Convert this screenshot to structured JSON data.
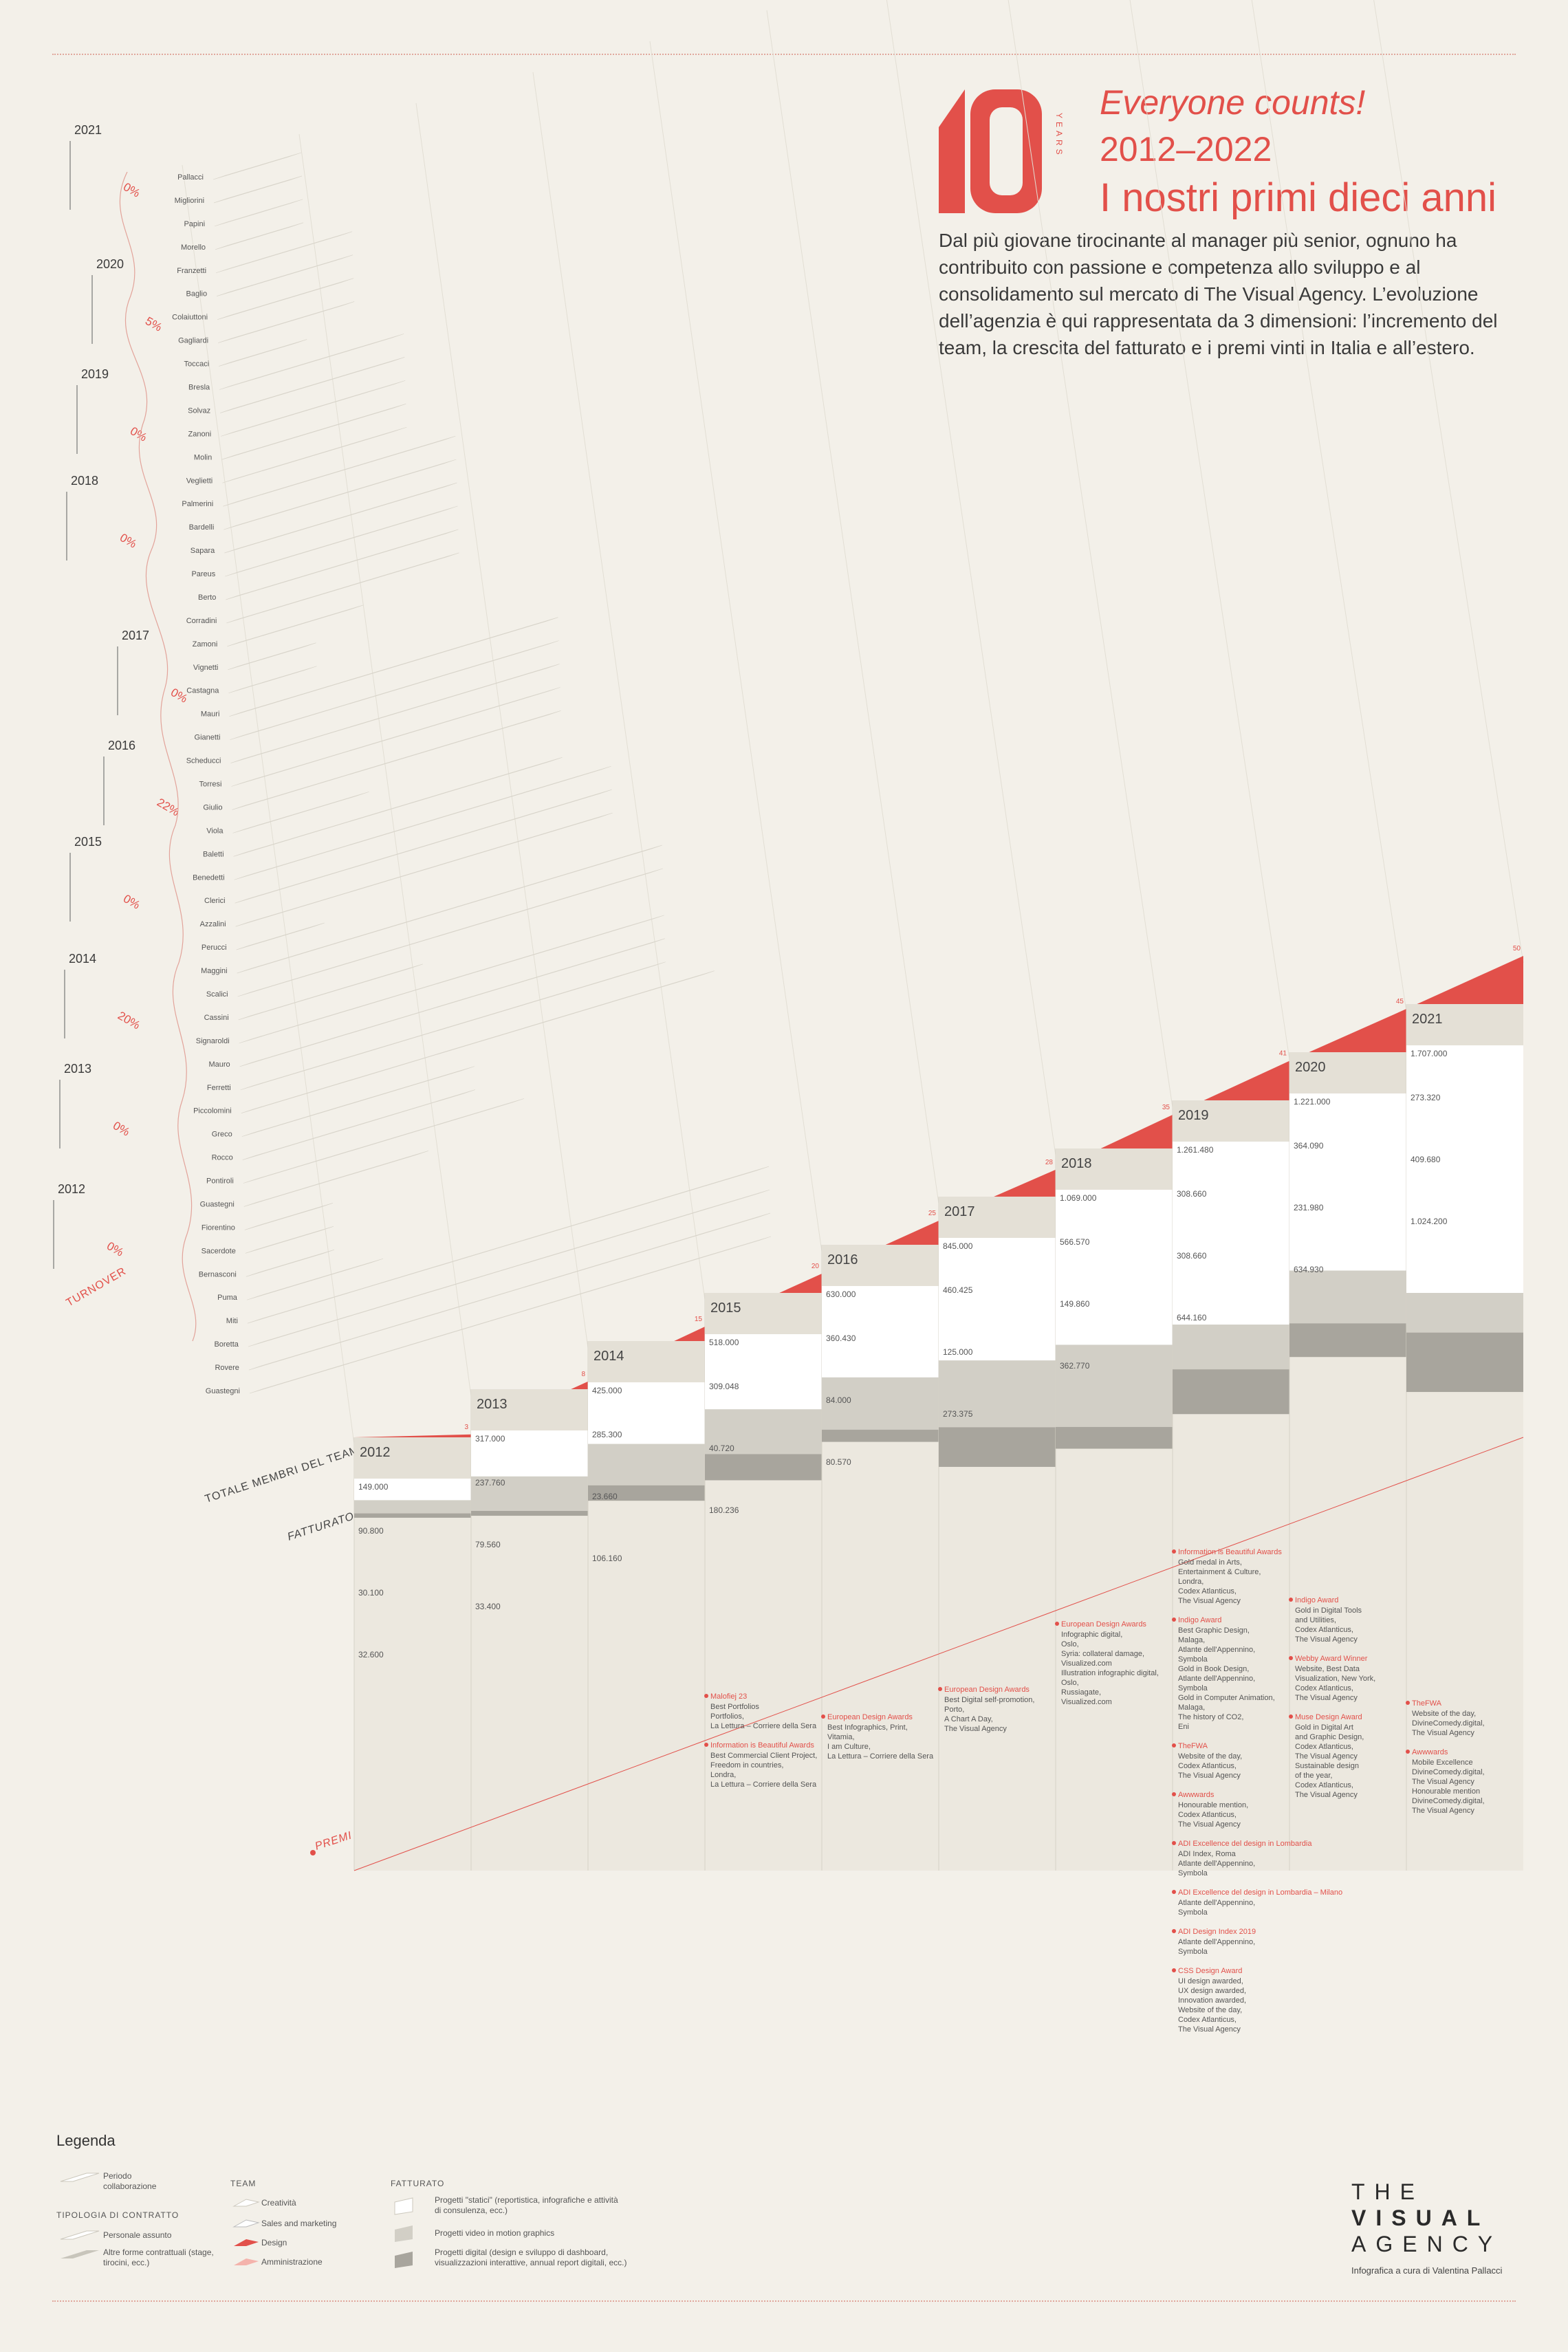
{
  "header": {
    "logo_number": "10",
    "logo_years": "YEARS",
    "tagline": "Everyone counts!",
    "range": "2012–2022",
    "title": "I nostri primi dieci anni",
    "intro": "Dal più giovane tirocinante al manager più senior, ognuno ha contribuito con passione e competenza allo sviluppo e al consolidamento sul mercato di The Visual Agency. L’evoluzione dell’agenzia è qui rappresentata da 3 dimensioni: l’incremento del team, la crescita del fatturato e i premi vinti in Italia e all’estero."
  },
  "colors": {
    "accent": "#e2504a",
    "background": "#f3f0e9",
    "static_projects": "#ffffff",
    "video_projects": "#d2cfc6",
    "digital_projects": "#a8a59d"
  },
  "chart_data": {
    "type": "area",
    "axis_labels": {
      "team": "TOTALE MEMBRI DEL TEAM",
      "revenue": "FATTURATO",
      "awards": "PREMI",
      "turnover": "TURNOVER"
    },
    "years": [
      "2012",
      "2013",
      "2014",
      "2015",
      "2016",
      "2017",
      "2018",
      "2019",
      "2020",
      "2021"
    ],
    "team_total": [
      3,
      8,
      15,
      20,
      25,
      28,
      35,
      41,
      45,
      50
    ],
    "revenue_total_labels": [
      "149.000",
      "317.000",
      "425.000",
      "518.000",
      "630.000",
      "845.000",
      "1.069.000",
      "1.261.480",
      "1.221.000",
      "1.707.000"
    ],
    "revenue_series": [
      {
        "name": "Progetti \"statici\"",
        "values": [
          149000,
          317000,
          425000,
          518000,
          630000,
          845000,
          1069000,
          1261480,
          1221000,
          1707000
        ]
      },
      {
        "name": "Progetti video in motion graphics",
        "values": [
          90800,
          237760,
          285300,
          309048,
          360430,
          460425,
          566570,
          308660,
          364090,
          273320
        ]
      },
      {
        "name": "Progetti digital",
        "values": [
          30100,
          33400,
          106160,
          180236,
          84000,
          273375,
          149860,
          308660,
          231980,
          409680
        ]
      }
    ],
    "revenue_other_labels": [
      [
        "90.800",
        "30.100",
        "32.600"
      ],
      [
        "237.760",
        "79.560",
        "33.400"
      ],
      [
        "285.300",
        "23.660",
        "106.160"
      ],
      [
        "309.048",
        "40.720",
        "180.236"
      ],
      [
        "360.430",
        "84.000",
        "80.570"
      ],
      [
        "460.425",
        "125.000",
        "273.375"
      ],
      [
        "566.570",
        "149.860",
        "362.770"
      ],
      [
        "308.660",
        "308.660",
        "644.160"
      ],
      [
        "364.090",
        "231.980",
        "634.930"
      ],
      [
        "273.320",
        "409.680",
        "1.024.200"
      ]
    ],
    "turnover": [
      {
        "year": "2021",
        "pct": "0%"
      },
      {
        "year": "2020",
        "pct": "5%"
      },
      {
        "year": "2019",
        "pct": "0%"
      },
      {
        "year": "2018",
        "pct": "0%"
      },
      {
        "year": "2017",
        "pct": "0%"
      },
      {
        "year": "2016",
        "pct": "22%"
      },
      {
        "year": "2015",
        "pct": "0%"
      },
      {
        "year": "2014",
        "pct": "20%"
      },
      {
        "year": "2013",
        "pct": "0%"
      },
      {
        "year": "2012",
        "pct": "0%"
      }
    ],
    "members": [
      {
        "name": "Pallacci",
        "year": 2021,
        "end": 2021,
        "type": "other"
      },
      {
        "name": "Migliorini",
        "year": 2021,
        "end": 2021,
        "type": "other"
      },
      {
        "name": "Papini",
        "year": 2021,
        "end": 2021,
        "type": "staff"
      },
      {
        "name": "Morello",
        "year": 2021,
        "end": 2021,
        "type": "staff"
      },
      {
        "name": "Franzetti",
        "year": 2020,
        "end": 2021,
        "type": "staff"
      },
      {
        "name": "Baglio",
        "year": 2020,
        "end": 2021,
        "type": "staff"
      },
      {
        "name": "Colaiuttoni",
        "year": 2020,
        "end": 2021,
        "type": "other"
      },
      {
        "name": "Gagliardi",
        "year": 2020,
        "end": 2021,
        "type": "staff"
      },
      {
        "name": "Toccaci",
        "year": 2020,
        "end": 2020,
        "type": "other"
      },
      {
        "name": "Bresla",
        "year": 2019,
        "end": 2021,
        "type": "staff"
      },
      {
        "name": "Solvaz",
        "year": 2019,
        "end": 2021,
        "type": "other"
      },
      {
        "name": "Zanoni",
        "year": 2019,
        "end": 2021,
        "type": "staff"
      },
      {
        "name": "Molin",
        "year": 2019,
        "end": 2021,
        "type": "other"
      },
      {
        "name": "Veglietti",
        "year": 2019,
        "end": 2021,
        "type": "staff"
      },
      {
        "name": "Palmerini",
        "year": 2018,
        "end": 2021,
        "type": "staff"
      },
      {
        "name": "Bardelli",
        "year": 2018,
        "end": 2021,
        "type": "other"
      },
      {
        "name": "Sapara",
        "year": 2018,
        "end": 2021,
        "type": "other"
      },
      {
        "name": "Pareus",
        "year": 2018,
        "end": 2021,
        "type": "staff"
      },
      {
        "name": "Berto",
        "year": 2018,
        "end": 2021,
        "type": "staff"
      },
      {
        "name": "Corradini",
        "year": 2018,
        "end": 2021,
        "type": "staff"
      },
      {
        "name": "Zamoni",
        "year": 2018,
        "end": 2019,
        "type": "other"
      },
      {
        "name": "Vignetti",
        "year": 2017,
        "end": 2017,
        "type": "other"
      },
      {
        "name": "Castagna",
        "year": 2017,
        "end": 2017,
        "type": "other"
      },
      {
        "name": "Mauri",
        "year": 2016,
        "end": 2021,
        "type": "other"
      },
      {
        "name": "Gianetti",
        "year": 2016,
        "end": 2021,
        "type": "staff"
      },
      {
        "name": "Scheducci",
        "year": 2016,
        "end": 2021,
        "type": "staff"
      },
      {
        "name": "Torresi",
        "year": 2016,
        "end": 2021,
        "type": "staff"
      },
      {
        "name": "Giulio",
        "year": 2016,
        "end": 2021,
        "type": "staff"
      },
      {
        "name": "Viola",
        "year": 2016,
        "end": 2017,
        "type": "other"
      },
      {
        "name": "Baletti",
        "year": 2016,
        "end": 2021,
        "type": "staff"
      },
      {
        "name": "Benedetti",
        "year": 2015,
        "end": 2021,
        "type": "staff"
      },
      {
        "name": "Clerici",
        "year": 2015,
        "end": 2021,
        "type": "staff"
      },
      {
        "name": "Azzalini",
        "year": 2015,
        "end": 2021,
        "type": "staff"
      },
      {
        "name": "Perucci",
        "year": 2014,
        "end": 2014,
        "type": "other"
      },
      {
        "name": "Maggini",
        "year": 2014,
        "end": 2021,
        "type": "staff"
      },
      {
        "name": "Scalici",
        "year": 2014,
        "end": 2021,
        "type": "staff"
      },
      {
        "name": "Cassini",
        "year": 2014,
        "end": 2016,
        "type": "staff"
      },
      {
        "name": "Signaroldi",
        "year": 2014,
        "end": 2021,
        "type": "staff"
      },
      {
        "name": "Mauro",
        "year": 2014,
        "end": 2021,
        "type": "staff"
      },
      {
        "name": "Ferretti",
        "year": 2014,
        "end": 2021,
        "type": "staff"
      },
      {
        "name": "Piccolomini",
        "year": 2013,
        "end": 2021,
        "type": "staff"
      },
      {
        "name": "Greco",
        "year": 2013,
        "end": 2016,
        "type": "other"
      },
      {
        "name": "Rocco",
        "year": 2013,
        "end": 2016,
        "type": "staff"
      },
      {
        "name": "Pontiroli",
        "year": 2013,
        "end": 2017,
        "type": "staff"
      },
      {
        "name": "Guastegni",
        "year": 2013,
        "end": 2015,
        "type": "staff"
      },
      {
        "name": "Fiorentino",
        "year": 2013,
        "end": 2013,
        "type": "other"
      },
      {
        "name": "Sacerdote",
        "year": 2013,
        "end": 2013,
        "type": "other"
      },
      {
        "name": "Bernasconi",
        "year": 2013,
        "end": 2013,
        "type": "other"
      },
      {
        "name": "Puma",
        "year": 2012,
        "end": 2013,
        "type": "other"
      },
      {
        "name": "Miti",
        "year": 2012,
        "end": 2021,
        "type": "staff"
      },
      {
        "name": "Boretta",
        "year": 2012,
        "end": 2021,
        "type": "staff"
      },
      {
        "name": "Rovere",
        "year": 2012,
        "end": 2021,
        "type": "staff"
      },
      {
        "name": "Guastegni",
        "year": 2012,
        "end": 2021,
        "type": "staff"
      }
    ],
    "awards": [
      {
        "year": 2015,
        "items": [
          {
            "title": "Malofiej 23",
            "lines": [
              "Best Portfolios",
              "Portfolios,",
              "La Lettura – Corriere della Sera"
            ]
          },
          {
            "title": "Information is Beautiful Awards",
            "lines": [
              "Best Commercial Client Project,",
              "Freedom in countries,",
              "Londra,",
              "La Lettura – Corriere della Sera"
            ]
          }
        ]
      },
      {
        "year": 2016,
        "items": [
          {
            "title": "European Design Awards",
            "lines": [
              "Best Infographics, Print,",
              "Vitamia,",
              "I am Culture,",
              "La Lettura – Corriere della Sera"
            ]
          }
        ]
      },
      {
        "year": 2017,
        "items": [
          {
            "title": "European Design Awards",
            "lines": [
              "Best Digital self-promotion,",
              "Porto,",
              "A Chart A Day,",
              "The Visual Agency"
            ]
          }
        ]
      },
      {
        "year": 2018,
        "items": [
          {
            "title": "European Design Awards",
            "lines": [
              "Infographic digital,",
              "Oslo,",
              "Syria: collateral damage,",
              "Visualized.com",
              "Illustration infographic digital,",
              "Oslo,",
              "Russiagate,",
              "Visualized.com"
            ]
          }
        ]
      },
      {
        "year": 2019,
        "items": [
          {
            "title": "Information is Beautiful Awards",
            "lines": [
              "Gold medal in Arts,",
              "Entertainment & Culture,",
              "Londra,",
              "Codex Atlanticus,",
              "The Visual Agency"
            ]
          },
          {
            "title": "Indigo Award",
            "lines": [
              "Best Graphic Design,",
              "Malaga,",
              "Atlante dell'Appennino,",
              "Symbola",
              "Gold in Book Design,",
              "Atlante dell'Appennino,",
              "Symbola",
              "Gold in Computer Animation,",
              "Malaga,",
              "The history of CO2,",
              "Eni"
            ]
          },
          {
            "title": "TheFWA",
            "lines": [
              "Website of the day,",
              "Codex Atlanticus,",
              "The Visual Agency"
            ]
          },
          {
            "title": "Awwwards",
            "lines": [
              "Honourable mention,",
              "Codex Atlanticus,",
              "The Visual Agency"
            ]
          },
          {
            "title": "ADI Excellence del design in Lombardia",
            "lines": [
              "ADI Index, Roma",
              "Atlante dell'Appennino,",
              "Symbola"
            ]
          },
          {
            "title": "ADI Excellence del design in Lombardia – Milano",
            "lines": [
              "Atlante dell'Appennino,",
              "Symbola"
            ]
          },
          {
            "title": "ADI Design Index 2019",
            "lines": [
              "Atlante dell'Appennino,",
              "Symbola"
            ]
          },
          {
            "title": "CSS Design Award",
            "lines": [
              "UI design awarded,",
              "UX design awarded,",
              "Innovation awarded,",
              "Website of the day,",
              "Codex Atlanticus,",
              "The Visual Agency"
            ]
          }
        ]
      },
      {
        "year": 2020,
        "items": [
          {
            "title": "Indigo Award",
            "lines": [
              "Gold in Digital Tools",
              "and Utilities,",
              "Codex Atlanticus,",
              "The Visual Agency"
            ]
          },
          {
            "title": "Webby Award Winner",
            "lines": [
              "Website, Best Data",
              "Visualization, New York,",
              "Codex Atlanticus,",
              "The Visual Agency"
            ]
          },
          {
            "title": "Muse Design Award",
            "lines": [
              "Gold in Digital Art",
              "and Graphic Design,",
              "Codex Atlanticus,",
              "The Visual Agency",
              "Sustainable design",
              "of the year,",
              "Codex Atlanticus,",
              "The Visual Agency"
            ]
          }
        ]
      },
      {
        "year": 2021,
        "items": [
          {
            "title": "TheFWA",
            "lines": [
              "Website of the day,",
              "DivineComedy.digital,",
              "The Visual Agency"
            ]
          },
          {
            "title": "Awwwards",
            "lines": [
              "Mobile Excellence",
              "DivineComedy.digital,",
              "The Visual Agency",
              "Honourable mention",
              "DivineComedy.digital,",
              "The Visual Agency"
            ]
          }
        ]
      }
    ]
  },
  "legend": {
    "title": "Legenda",
    "period": "Periodo collaborazione",
    "contract_title": "TIPOLOGIA DI CONTRATTO",
    "staff": "Personale assunto",
    "other": "Altre forme contrattuali (stage, tirocini, ecc.)",
    "team_title": "TEAM",
    "creativity": "Creatività",
    "sales": "Sales and marketing",
    "design": "Design",
    "admin": "Amministrazione",
    "revenue_title": "FATTURATO",
    "static": "Progetti \"statici\" (reportistica, infografiche e attività di consulenza, ecc.)",
    "video": "Progetti video in motion graphics",
    "digital": "Progetti digital (design e sviluppo di dashboard, visualizzazioni interattive, annual report digitali, ecc.)"
  },
  "brand": {
    "line1": "THE",
    "line2": "VISUAL",
    "line3": "AGENCY",
    "credit": "Infografica a cura di Valentina Pallacci"
  }
}
